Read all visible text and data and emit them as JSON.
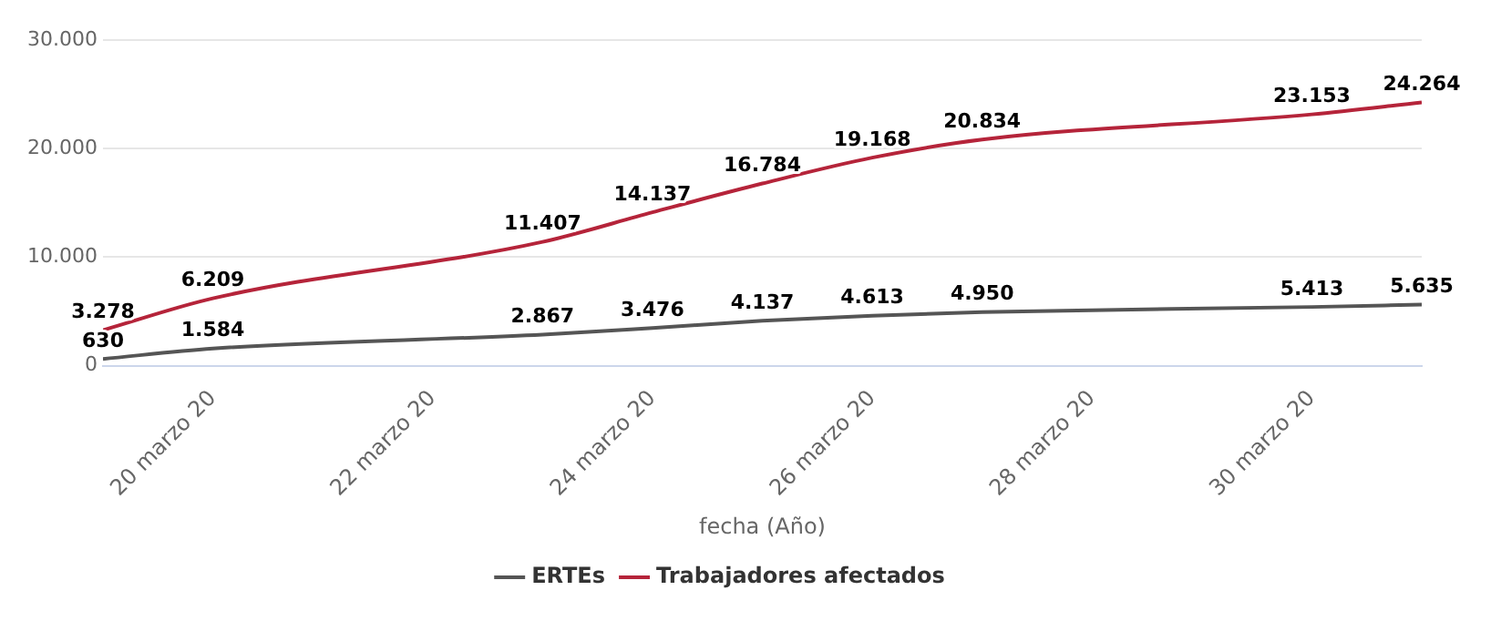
{
  "chart_data": {
    "type": "line",
    "xlabel": "fecha (Año)",
    "x": [
      "--03-19",
      "--03-20",
      "--03-23",
      "--03-24",
      "--03-25",
      "--03-26",
      "--03-27",
      "--03-30",
      "--03-31"
    ],
    "series": [
      {
        "name": "ERTEs",
        "color": "#555555",
        "values": [
          630,
          1584,
          2867,
          3476,
          4137,
          4613,
          4950,
          5413,
          5635
        ],
        "value_labels": [
          "630",
          "1.584",
          "2.867",
          "3.476",
          "4.137",
          "4.613",
          "4.950",
          "5.413",
          "5.635"
        ]
      },
      {
        "name": "Trabajadores afectados",
        "color": "#b5243a",
        "values": [
          3278,
          6209,
          11407,
          14137,
          16784,
          19168,
          20834,
          23153,
          24264
        ],
        "value_labels": [
          "3.278",
          "6.209",
          "11.407",
          "14.137",
          "16.784",
          "19.168",
          "20.834",
          "23.153",
          "24.264"
        ]
      }
    ],
    "xlim": [
      "--03-19",
      "--03-31"
    ],
    "xticks": [
      {
        "value": "--03-20",
        "label": "20 marzo 20"
      },
      {
        "value": "--03-22",
        "label": "22 marzo 20"
      },
      {
        "value": "--03-24",
        "label": "24 marzo 20"
      },
      {
        "value": "--03-26",
        "label": "26 marzo 20"
      },
      {
        "value": "--03-28",
        "label": "28 marzo 20"
      },
      {
        "value": "--03-30",
        "label": "30 marzo 20"
      }
    ],
    "ylim": [
      0,
      30000
    ],
    "yticks": [
      {
        "value": 0,
        "label": "0"
      },
      {
        "value": 10000,
        "label": "10.000"
      },
      {
        "value": 20000,
        "label": "20.000"
      },
      {
        "value": 30000,
        "label": "30.000"
      }
    ],
    "grid": "y",
    "legend": "bottom",
    "marker": "none",
    "line_style": "solid"
  }
}
